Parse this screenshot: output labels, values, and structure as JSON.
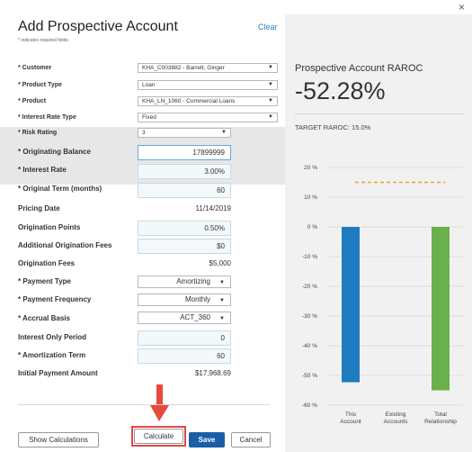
{
  "window": {
    "close_glyph": "×"
  },
  "form": {
    "title": "Add Prospective Account",
    "clear_label": "Clear",
    "required_note": "* indicates required fields",
    "rows": {
      "customer": {
        "label": "* Customer",
        "value": "KHA_C003882 - Barrett, Ginger"
      },
      "product_type": {
        "label": "* Product Type",
        "value": "Loan"
      },
      "product": {
        "label": "* Product",
        "value": "KHA_LN_1060 - Commercial Loans"
      },
      "interest_rate_type": {
        "label": "* Interest Rate Type",
        "value": "Fixed"
      },
      "risk_rating": {
        "label": "* Risk Rating",
        "value": "3"
      },
      "originating_balance": {
        "label": "* Originating Balance",
        "value": "17899999"
      },
      "interest_rate": {
        "label": "* Interest Rate",
        "value": "3.00%"
      },
      "original_term": {
        "label": "* Original Term (months)",
        "value": "60"
      },
      "pricing_date": {
        "label": "Pricing Date",
        "value": "11/14/2019"
      },
      "origination_points": {
        "label": "Origination Points",
        "value": "0.50%"
      },
      "additional_origination_fees": {
        "label": "Additional Origination Fees",
        "value": "$0"
      },
      "origination_fees": {
        "label": "Origination Fees",
        "value": "$5,000"
      },
      "payment_type": {
        "label": "* Payment Type",
        "value": "Amortizing"
      },
      "payment_frequency": {
        "label": "* Payment Frequency",
        "value": "Monthly"
      },
      "accrual_basis": {
        "label": "* Accrual Basis",
        "value": "ACT_360"
      },
      "interest_only_period": {
        "label": "Interest Only Period",
        "value": "0"
      },
      "amortization_term": {
        "label": "* Amortization Term",
        "value": "60"
      },
      "initial_payment_amount": {
        "label": "Initial Payment Amount",
        "value": "$17,968.69"
      }
    },
    "buttons": {
      "show_calculations": "Show Calculations",
      "calculate": "Calculate",
      "save": "Save",
      "cancel": "Cancel"
    }
  },
  "raroc": {
    "title": "Prospective Account RAROC",
    "value": "-52.28%",
    "target_label": "TARGET RAROC: 15.0%"
  },
  "chart_data": {
    "type": "bar",
    "categories": [
      "This Account",
      "Existing Accounts",
      "Total Relationship"
    ],
    "category_lines": [
      [
        "This",
        "Account"
      ],
      [
        "Existing",
        "Accounts"
      ],
      [
        "Total",
        "Relationship"
      ]
    ],
    "values": [
      -52.28,
      0,
      -55
    ],
    "bar_colors": [
      "#1f7bbf",
      "#1f7bbf",
      "#6ab04c"
    ],
    "target_line": 15.0,
    "target_color": "#f0a030",
    "ylim": [
      -60,
      20
    ],
    "yticks": [
      20,
      10,
      0,
      -10,
      -20,
      -30,
      -40,
      -50,
      -60
    ],
    "ytick_labels": [
      "20 %",
      "10 %",
      "0 %",
      "-10 %",
      "-20 %",
      "-30 %",
      "-40 %",
      "-50 %",
      "-60 %"
    ],
    "grid": true
  }
}
